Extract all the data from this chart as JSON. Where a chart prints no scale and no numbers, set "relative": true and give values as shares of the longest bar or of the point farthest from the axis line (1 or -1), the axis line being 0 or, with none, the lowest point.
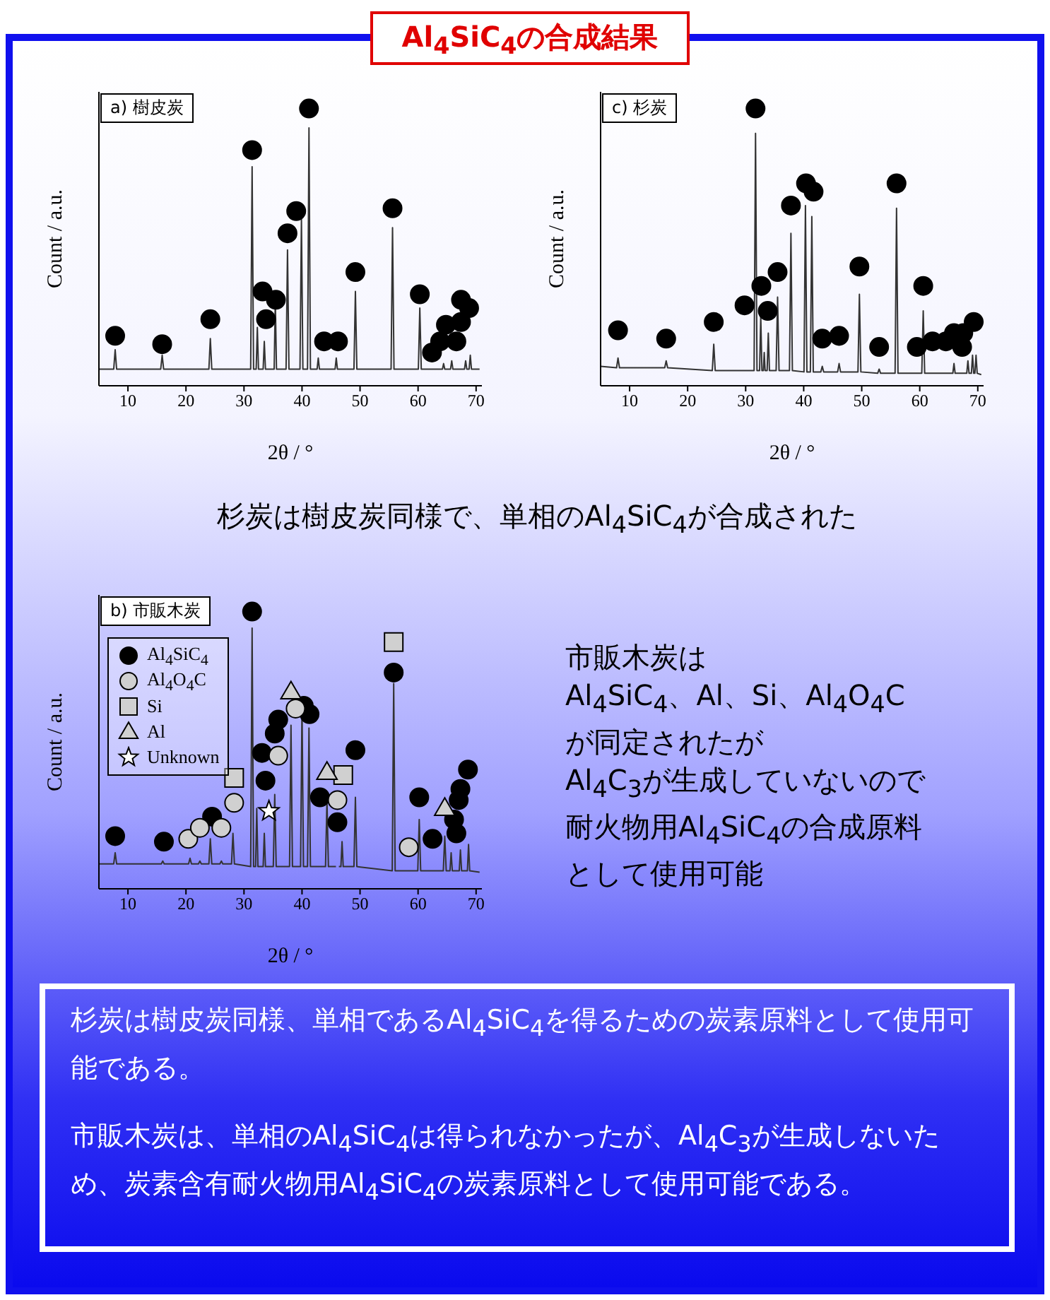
{
  "chart_data": [
    {
      "type": "other",
      "title": "Al$_{4}$SiC$_{4}$の合成結果"
    },
    {
      "type": "line",
      "title": "a) 樹皮炭",
      "xlabel": "2θ / °",
      "ylabel": "Count / a.u.",
      "relative": true,
      "tick_labels": "x",
      "xlim": [
        5,
        71
      ],
      "xticks": [
        10,
        20,
        30,
        40,
        50,
        60,
        70
      ],
      "series": [
        {
          "type": "line",
          "color": "#333333",
          "marker": "none",
          "x": [
            5,
            7.55,
            7.8,
            8.05,
            15.65,
            15.9,
            16.15,
            23.95,
            24.2,
            24.45,
            31.15,
            31.4,
            31.65,
            32.1,
            32.3,
            32.5,
            33.3,
            33.5,
            33.7,
            35.2,
            35.4,
            35.6,
            37.25,
            37.5,
            37.75,
            39.65,
            39.9,
            40.15,
            40.95,
            41.2,
            41.45,
            42.6,
            42.8,
            43.0,
            45.7,
            45.9,
            46.1,
            48.95,
            49.2,
            49.45,
            55.35,
            55.6,
            55.85,
            60.05,
            60.3,
            60.55,
            64.2,
            64.4,
            64.6,
            65.6,
            65.8,
            66.0,
            68.0,
            68.2,
            68.4,
            68.8,
            69.0,
            69.2,
            70.6
          ],
          "values": [
            0.06,
            0.06,
            0.13,
            0.06,
            0.06,
            0.11,
            0.06,
            0.06,
            0.17,
            0.06,
            0.06,
            0.79,
            0.06,
            0.06,
            0.21,
            0.06,
            0.06,
            0.16,
            0.06,
            0.06,
            0.31,
            0.06,
            0.06,
            0.49,
            0.06,
            0.06,
            0.6,
            0.06,
            0.06,
            0.93,
            0.06,
            0.06,
            0.1,
            0.06,
            0.06,
            0.1,
            0.06,
            0.06,
            0.34,
            0.06,
            0.06,
            0.57,
            0.06,
            0.06,
            0.28,
            0.06,
            0.06,
            0.08,
            0.06,
            0.06,
            0.09,
            0.06,
            0.06,
            0.09,
            0.06,
            0.06,
            0.11,
            0.06,
            0.06
          ]
        },
        {
          "type": "scatter",
          "color": "#000000",
          "marker": "circle",
          "x": [
            7.8,
            15.9,
            24.2,
            31.4,
            33.2,
            33.8,
            35.5,
            37.5,
            39.0,
            41.2,
            43.8,
            46.2,
            49.2,
            55.6,
            60.3,
            62.4,
            63.8,
            64.8,
            66.6,
            67.4,
            67.4,
            68.8
          ],
          "values": [
            0.18,
            0.15,
            0.24,
            0.85,
            0.34,
            0.24,
            0.31,
            0.55,
            0.63,
            1,
            0.16,
            0.16,
            0.41,
            0.64,
            0.33,
            0.12,
            0.16,
            0.22,
            0.16,
            0.23,
            0.31,
            0.28
          ]
        }
      ]
    },
    {
      "type": "line",
      "title": "c) 杉炭",
      "xlabel": "2θ / °",
      "ylabel": "Count / a.u.",
      "relative": true,
      "tick_labels": "x",
      "xlim": [
        5,
        71
      ],
      "xticks": [
        10,
        20,
        30,
        40,
        50,
        60,
        70
      ],
      "series": [
        {
          "type": "line",
          "color": "#333333",
          "marker": "none",
          "x": [
            5,
            7.75,
            8.0,
            8.25,
            16.05,
            16.3,
            16.55,
            24.25,
            24.5,
            24.75,
            31.45,
            31.7,
            31.95,
            32.4,
            32.6,
            32.8,
            33.05,
            33.2,
            33.35,
            33.7,
            33.9,
            34.1,
            35.25,
            35.5,
            35.75,
            37.55,
            37.8,
            38.05,
            40.05,
            40.3,
            40.55,
            41.15,
            41.4,
            41.65,
            42.95,
            43.2,
            43.45,
            45.85,
            46.1,
            46.35,
            49.35,
            49.6,
            49.85,
            52.75,
            53.0,
            53.25,
            55.75,
            56.0,
            56.25,
            60.35,
            60.6,
            60.85,
            65.7,
            65.9,
            66.1,
            68.1,
            68.3,
            68.5,
            68.9,
            69.1,
            69.3,
            69.5,
            69.7,
            69.9,
            70.6
          ],
          "values": [
            0.07,
            0.065,
            0.1,
            0.065,
            0.065,
            0.09,
            0.065,
            0.055,
            0.15,
            0.055,
            0.055,
            0.91,
            0.055,
            0.055,
            0.25,
            0.055,
            0.055,
            0.12,
            0.055,
            0.055,
            0.19,
            0.055,
            0.055,
            0.32,
            0.055,
            0.055,
            0.55,
            0.055,
            0.05,
            0.65,
            0.05,
            0.05,
            0.61,
            0.05,
            0.05,
            0.07,
            0.05,
            0.05,
            0.08,
            0.05,
            0.05,
            0.33,
            0.05,
            0.045,
            0.06,
            0.045,
            0.045,
            0.64,
            0.045,
            0.045,
            0.27,
            0.045,
            0.045,
            0.08,
            0.045,
            0.045,
            0.09,
            0.045,
            0.045,
            0.11,
            0.045,
            0.045,
            0.11,
            0.045,
            0.04
          ]
        },
        {
          "type": "scatter",
          "color": "#000000",
          "marker": "circle",
          "x": [
            8.0,
            16.3,
            24.5,
            29.8,
            31.7,
            32.7,
            33.8,
            35.5,
            37.8,
            40.4,
            41.7,
            43.2,
            46.1,
            49.6,
            53.0,
            56.0,
            59.5,
            60.6,
            62.2,
            64.5,
            65.9,
            67.3,
            67.5,
            69.3
          ],
          "values": [
            0.2,
            0.17,
            0.23,
            0.29,
            1,
            0.36,
            0.27,
            0.41,
            0.65,
            0.73,
            0.7,
            0.17,
            0.18,
            0.43,
            0.14,
            0.73,
            0.14,
            0.36,
            0.16,
            0.16,
            0.19,
            0.14,
            0.19,
            0.23
          ]
        }
      ]
    },
    {
      "type": "other",
      "annotations": [
        "杉炭は樹皮炭同様で、単相のAl$_{4}$SiC$_{4}$が合成された"
      ]
    },
    {
      "type": "line",
      "title": "b) 市販木炭",
      "xlabel": "2θ / °",
      "ylabel": "Count / a.u.",
      "relative": true,
      "tick_labels": "x",
      "xlim": [
        5,
        71
      ],
      "xticks": [
        10,
        20,
        30,
        40,
        50,
        60,
        70
      ],
      "legend": "top left",
      "series": [
        {
          "type": "line",
          "color": "#333333",
          "marker": "none",
          "x": [
            5,
            7.55,
            7.8,
            8.05,
            15.75,
            16.0,
            16.25,
            20.45,
            20.7,
            20.95,
            22.15,
            22.4,
            22.65,
            23.95,
            24.2,
            24.45,
            25.85,
            26.1,
            26.35,
            27.85,
            28.1,
            28.35,
            31.15,
            31.4,
            31.65,
            32.0,
            32.2,
            32.4,
            33.3,
            33.5,
            33.7,
            35.05,
            35.3,
            35.55,
            37.85,
            38.1,
            38.35,
            39.75,
            40.0,
            40.25,
            40.95,
            41.2,
            41.45,
            44.05,
            44.3,
            44.55,
            45.85,
            46.1,
            46.35,
            46.7,
            46.9,
            47.1,
            48.95,
            49.2,
            49.45,
            55.55,
            55.8,
            56.05,
            59.95,
            60.2,
            60.45,
            64.35,
            64.6,
            64.85,
            65.5,
            65.7,
            65.9,
            67.1,
            67.3,
            67.5,
            68.5,
            68.7,
            68.9,
            70.6
          ],
          "values": [
            0.09,
            0.09,
            0.13,
            0.09,
            0.09,
            0.1,
            0.09,
            0.09,
            0.11,
            0.09,
            0.09,
            0.1,
            0.09,
            0.09,
            0.18,
            0.09,
            0.09,
            0.1,
            0.09,
            0.09,
            0.2,
            0.09,
            0.08,
            0.94,
            0.08,
            0.08,
            0.29,
            0.08,
            0.08,
            0.2,
            0.08,
            0.08,
            0.34,
            0.08,
            0.08,
            0.59,
            0.08,
            0.08,
            0.66,
            0.08,
            0.08,
            0.58,
            0.08,
            0.08,
            0.32,
            0.08,
            0.08,
            null,
            0.08,
            0.08,
            0.17,
            0.08,
            0.08,
            0.33,
            0.08,
            0.065,
            0.74,
            0.065,
            0.065,
            0.25,
            0.065,
            0.065,
            0.19,
            0.065,
            0.065,
            0.13,
            0.065,
            0.065,
            0.14,
            0.065,
            0.065,
            0.16,
            0.065,
            0.06
          ]
        },
        {
          "type": "scatter",
          "name": "Al$_{4}$SiC$_{4}$",
          "color": "#000000",
          "marker": "circle",
          "x": [
            7.8,
            16.2,
            24.5,
            31.4,
            33.1,
            33.7,
            35.3,
            35.9,
            40.3,
            41.3,
            43.1,
            46.1,
            49.2,
            55.8,
            60.2,
            62.5,
            66.2,
            66.6,
            67.0,
            67.3,
            68.6
          ],
          "values": [
            0.19,
            0.17,
            0.26,
            1,
            0.49,
            0.39,
            0.56,
            0.61,
            0.66,
            0.63,
            0.33,
            0.24,
            0.5,
            0.78,
            0.33,
            0.18,
            0.25,
            0.2,
            0.32,
            0.36,
            0.43
          ]
        },
        {
          "type": "scatter",
          "name": "Al$_{4}$O$_{4}$C",
          "color": "#d0d0d0",
          "marker": "circle",
          "x": [
            20.4,
            22.4,
            26.1,
            28.3,
            35.9,
            38.9,
            46.1,
            58.4
          ],
          "values": [
            0.18,
            0.22,
            0.22,
            0.31,
            0.48,
            0.65,
            0.32,
            0.15
          ]
        },
        {
          "type": "scatter",
          "name": "Si",
          "color": "#d0d0d0",
          "marker": "square",
          "x": [
            28.3,
            47.1,
            55.8
          ],
          "values": [
            0.4,
            0.41,
            0.89
          ]
        },
        {
          "type": "scatter",
          "name": "Al",
          "color": "#d0d0d0",
          "marker": "triangle",
          "x": [
            38.1,
            44.3,
            64.6
          ],
          "values": [
            0.71,
            0.42,
            0.29
          ]
        },
        {
          "type": "scatter",
          "name": "Unknown",
          "color": "#ffffff",
          "marker": "star",
          "x": [
            34.3
          ],
          "values": [
            0.28
          ]
        }
      ]
    },
    {
      "type": "other",
      "annotations": [
        "市販木炭は",
        "Al$_{4}$SiC$_{4}$、Al、Si、Al$_{4}$O$_{4}$C",
        "が同定されたが",
        "Al$_{4}$C$_{3}$が生成していないので",
        "耐火物用Al$_{4}$SiC$_{4}$の合成原料",
        "として使用可能"
      ]
    },
    {
      "type": "other",
      "annotations": [
        "杉炭は樹皮炭同様、単相であるAl$_{4}$SiC$_{4}$を得るための炭素原料として使用可能である。",
        "市販木炭は、単相のAl$_{4}$SiC$_{4}$は得られなかったが、Al$_{4}$C$_{3}$が生成しないため、炭素含有耐火物用Al$_{4}$SiC$_{4}$の炭素原料として使用可能である。"
      ]
    }
  ]
}
